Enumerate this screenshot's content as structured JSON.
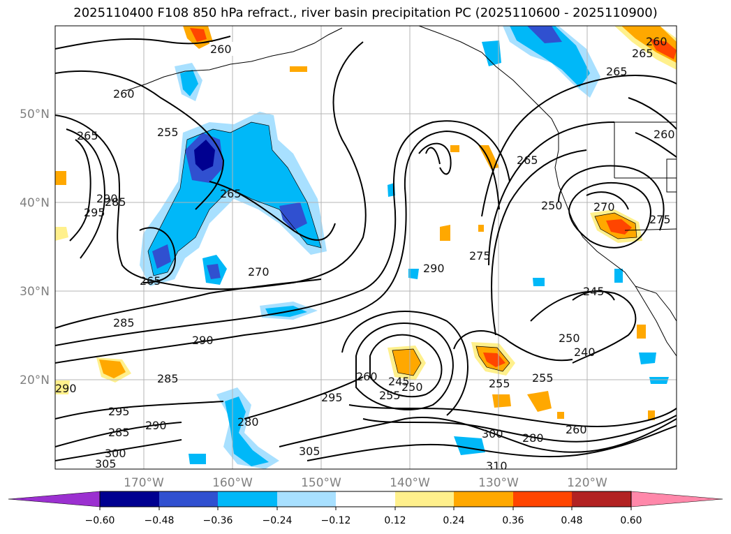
{
  "title": "2025110400 F108 850 hPa refract., river basin precipitation PC (2025110600 - 2025110900)",
  "lat_labels": [
    "50°N",
    "40°N",
    "30°N",
    "20°N"
  ],
  "lon_labels": [
    "170°W",
    "160°W",
    "150°W",
    "140°W",
    "130°W",
    "120°W"
  ],
  "colorbar": {
    "ticks": [
      "−0.60",
      "−0.48",
      "−0.36",
      "−0.24",
      "−0.12",
      "0.12",
      "0.24",
      "0.36",
      "0.48",
      "0.60"
    ],
    "colors": [
      "#9b30d0",
      "#000090",
      "#3050d0",
      "#00b8f8",
      "#a8e0ff",
      "#ffffff",
      "#fff08c",
      "#ffa800",
      "#ff4500",
      "#b22222",
      "#ff88aa"
    ]
  },
  "contour_labels": [
    "260",
    "260",
    "265",
    "255",
    "260",
    "265",
    "290",
    "295",
    "285",
    "270",
    "265",
    "265",
    "265",
    "250",
    "270",
    "275",
    "275",
    "290",
    "285",
    "290",
    "285",
    "290",
    "295",
    "285",
    "290",
    "280",
    "300",
    "305",
    "295",
    "305",
    "260",
    "245",
    "255",
    "250",
    "255",
    "255",
    "240",
    "245",
    "250",
    "300",
    "280",
    "260",
    "310",
    "265",
    "260"
  ]
}
